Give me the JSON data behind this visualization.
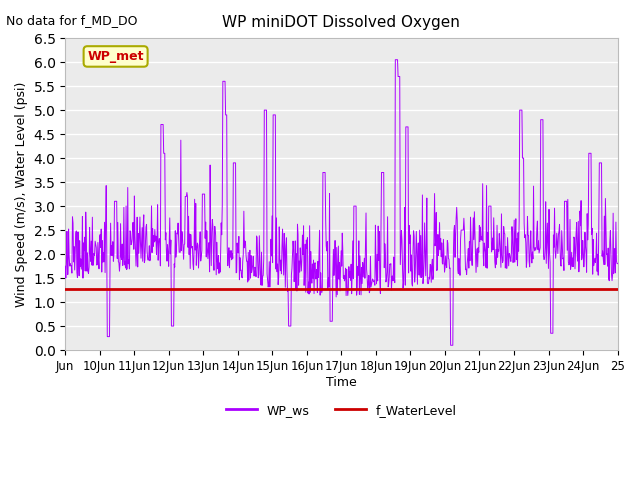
{
  "title": "WP miniDOT Dissolved Oxygen",
  "no_data_text": "No data for f_MD_DO",
  "ylabel": "Wind Speed (m/s), Water Level (psi)",
  "xlabel": "Time",
  "xlim_start": 9,
  "xlim_end": 25,
  "ylim": [
    0.0,
    6.5
  ],
  "yticks": [
    0.0,
    0.5,
    1.0,
    1.5,
    2.0,
    2.5,
    3.0,
    3.5,
    4.0,
    4.5,
    5.0,
    5.5,
    6.0,
    6.5
  ],
  "xtick_positions": [
    9,
    10,
    11,
    12,
    13,
    14,
    15,
    16,
    17,
    18,
    19,
    20,
    21,
    22,
    23,
    24,
    25
  ],
  "xtick_labels": [
    "Jun",
    "10Jun",
    "11Jun",
    "12Jun",
    "13Jun",
    "14Jun",
    "15Jun",
    "16Jun",
    "17Jun",
    "18Jun",
    "19Jun",
    "20Jun",
    "21Jun",
    "22Jun",
    "23Jun",
    "24Jun",
    "25"
  ],
  "wp_ws_color": "#AA00FF",
  "f_waterlevel_color": "#CC0000",
  "f_waterlevel_value": 1.27,
  "inset_label": "WP_met",
  "inset_label_color": "#CC0000",
  "inset_bg_color": "#FFFFCC",
  "inset_border_color": "#AAAA00",
  "legend_labels": [
    "WP_ws",
    "f_WaterLevel"
  ],
  "plot_bg_color": "#EBEBEB"
}
